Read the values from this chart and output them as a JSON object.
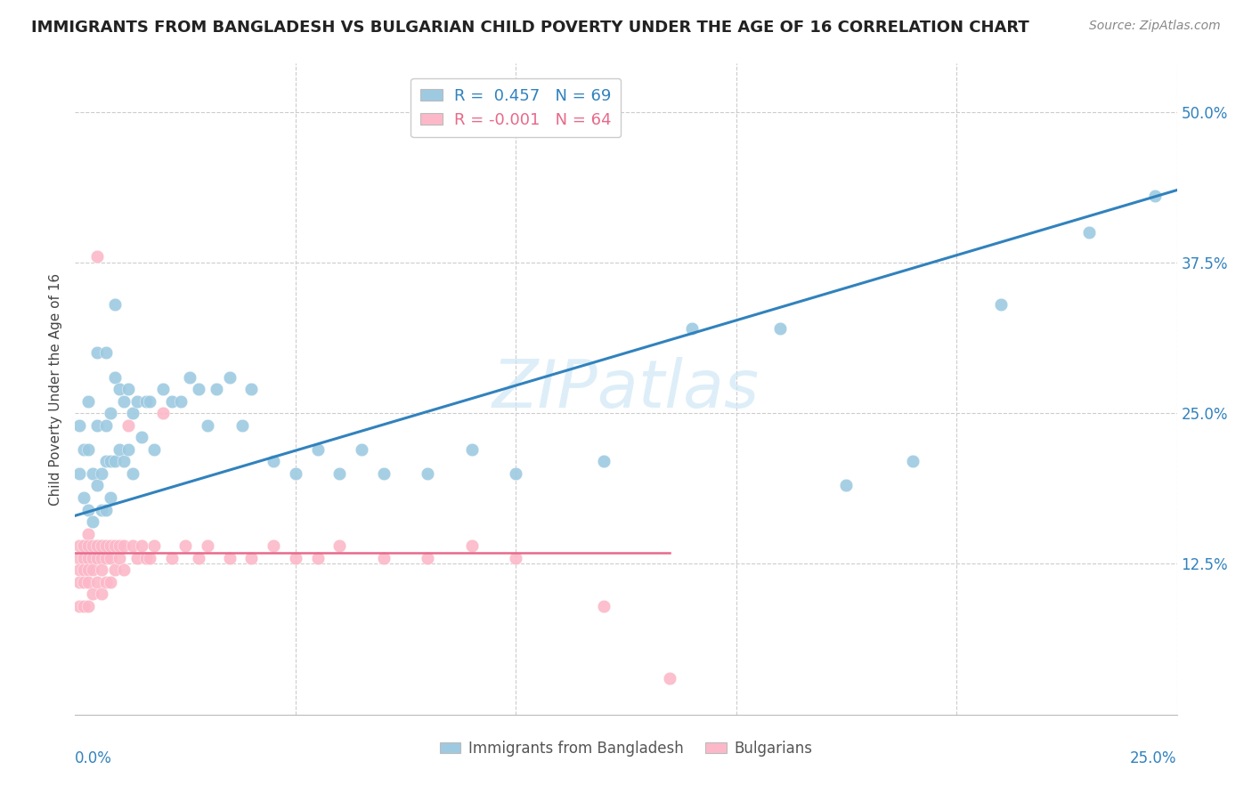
{
  "title": "IMMIGRANTS FROM BANGLADESH VS BULGARIAN CHILD POVERTY UNDER THE AGE OF 16 CORRELATION CHART",
  "source": "Source: ZipAtlas.com",
  "ylabel": "Child Poverty Under the Age of 16",
  "xlim": [
    0.0,
    0.25
  ],
  "ylim": [
    0.0,
    0.54
  ],
  "blue_color": "#9ecae1",
  "pink_color": "#fcb8c8",
  "blue_line_color": "#3182bd",
  "pink_line_color": "#e8698a",
  "watermark": "ZIPatlas",
  "title_fontsize": 13,
  "blue_scatter_x": [
    0.001,
    0.001,
    0.002,
    0.002,
    0.002,
    0.003,
    0.003,
    0.003,
    0.003,
    0.004,
    0.004,
    0.004,
    0.005,
    0.005,
    0.005,
    0.005,
    0.006,
    0.006,
    0.006,
    0.007,
    0.007,
    0.007,
    0.007,
    0.008,
    0.008,
    0.008,
    0.009,
    0.009,
    0.009,
    0.01,
    0.01,
    0.011,
    0.011,
    0.012,
    0.012,
    0.013,
    0.013,
    0.014,
    0.015,
    0.016,
    0.017,
    0.018,
    0.02,
    0.022,
    0.024,
    0.026,
    0.028,
    0.03,
    0.032,
    0.035,
    0.038,
    0.04,
    0.045,
    0.05,
    0.055,
    0.06,
    0.065,
    0.07,
    0.08,
    0.09,
    0.1,
    0.12,
    0.14,
    0.16,
    0.175,
    0.19,
    0.21,
    0.23,
    0.245
  ],
  "blue_scatter_y": [
    0.24,
    0.2,
    0.22,
    0.18,
    0.14,
    0.26,
    0.22,
    0.17,
    0.13,
    0.2,
    0.16,
    0.13,
    0.3,
    0.24,
    0.19,
    0.14,
    0.2,
    0.17,
    0.14,
    0.3,
    0.24,
    0.21,
    0.17,
    0.25,
    0.21,
    0.18,
    0.34,
    0.28,
    0.21,
    0.27,
    0.22,
    0.26,
    0.21,
    0.27,
    0.22,
    0.25,
    0.2,
    0.26,
    0.23,
    0.26,
    0.26,
    0.22,
    0.27,
    0.26,
    0.26,
    0.28,
    0.27,
    0.24,
    0.27,
    0.28,
    0.24,
    0.27,
    0.21,
    0.2,
    0.22,
    0.2,
    0.22,
    0.2,
    0.2,
    0.22,
    0.2,
    0.21,
    0.32,
    0.32,
    0.19,
    0.21,
    0.34,
    0.4,
    0.43
  ],
  "pink_scatter_x": [
    0.001,
    0.001,
    0.001,
    0.001,
    0.001,
    0.002,
    0.002,
    0.002,
    0.002,
    0.002,
    0.003,
    0.003,
    0.003,
    0.003,
    0.003,
    0.003,
    0.004,
    0.004,
    0.004,
    0.004,
    0.005,
    0.005,
    0.005,
    0.005,
    0.006,
    0.006,
    0.006,
    0.006,
    0.007,
    0.007,
    0.007,
    0.008,
    0.008,
    0.008,
    0.009,
    0.009,
    0.01,
    0.01,
    0.011,
    0.011,
    0.012,
    0.013,
    0.014,
    0.015,
    0.016,
    0.017,
    0.018,
    0.02,
    0.022,
    0.025,
    0.028,
    0.03,
    0.035,
    0.04,
    0.045,
    0.05,
    0.055,
    0.06,
    0.07,
    0.08,
    0.09,
    0.1,
    0.12,
    0.135
  ],
  "pink_scatter_y": [
    0.14,
    0.13,
    0.12,
    0.11,
    0.09,
    0.14,
    0.13,
    0.12,
    0.11,
    0.09,
    0.15,
    0.14,
    0.13,
    0.12,
    0.11,
    0.09,
    0.14,
    0.13,
    0.12,
    0.1,
    0.38,
    0.14,
    0.13,
    0.11,
    0.14,
    0.13,
    0.12,
    0.1,
    0.14,
    0.13,
    0.11,
    0.14,
    0.13,
    0.11,
    0.14,
    0.12,
    0.14,
    0.13,
    0.14,
    0.12,
    0.24,
    0.14,
    0.13,
    0.14,
    0.13,
    0.13,
    0.14,
    0.25,
    0.13,
    0.14,
    0.13,
    0.14,
    0.13,
    0.13,
    0.14,
    0.13,
    0.13,
    0.14,
    0.13,
    0.13,
    0.14,
    0.13,
    0.09,
    0.03
  ],
  "blue_trendline_x": [
    0.0,
    0.25
  ],
  "blue_trendline_y": [
    0.165,
    0.435
  ],
  "pink_trendline_x": [
    0.0,
    0.135
  ],
  "pink_trendline_y": [
    0.134,
    0.134
  ],
  "ytick_positions": [
    0.125,
    0.25,
    0.375,
    0.5
  ],
  "ytick_labels": [
    "12.5%",
    "25.0%",
    "37.5%",
    "50.0%"
  ],
  "xtick_grid": [
    0.05,
    0.1,
    0.15,
    0.2,
    0.25
  ]
}
